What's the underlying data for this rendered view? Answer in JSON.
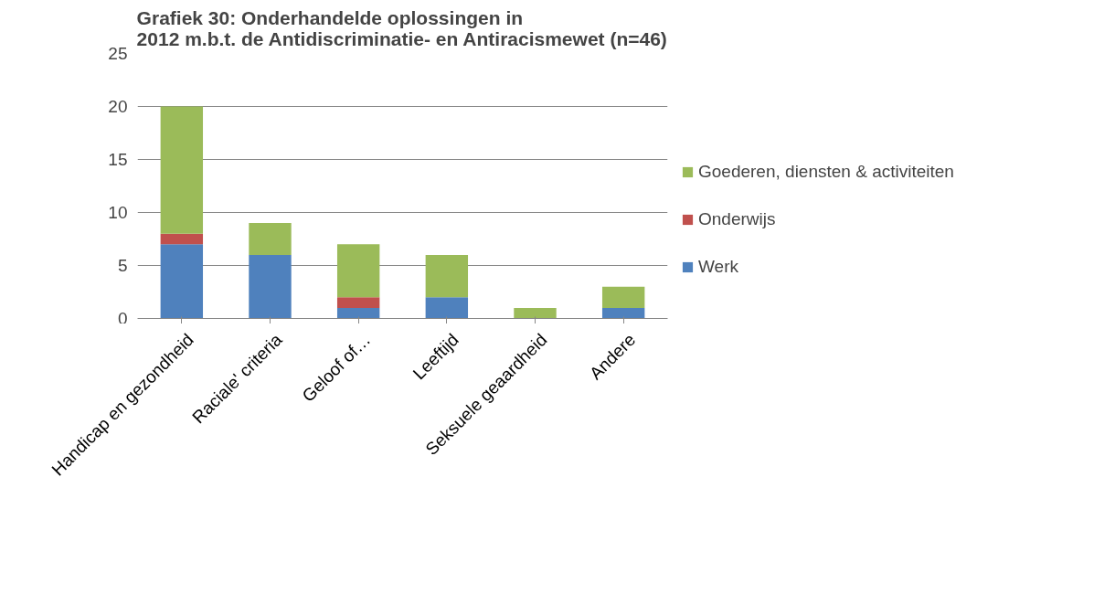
{
  "chart_data": {
    "type": "bar",
    "title": "Grafiek 30: Onderhandelde oplossingen in 2012 m.b.t. de Antidiscriminatie- en Antiracismewet (n=46)",
    "categories": [
      "Handicap en gezondheid",
      "Raciale' criteria",
      "Geloof of…",
      "Leeftijd",
      "Seksuele geaardheid",
      "Andere"
    ],
    "stacked": true,
    "series": [
      {
        "name": "Werk",
        "color": "#4f81bd",
        "values": [
          7,
          6,
          1,
          2,
          0,
          1
        ]
      },
      {
        "name": "Onderwijs",
        "color": "#c0504d",
        "values": [
          1,
          0,
          1,
          0,
          0,
          0
        ]
      },
      {
        "name": "Goederen, diensten & activiteiten",
        "color": "#9bbb59",
        "values": [
          12,
          3,
          5,
          4,
          1,
          2
        ]
      }
    ],
    "ylim": [
      0,
      25
    ],
    "yticks": [
      0,
      5,
      10,
      15,
      20,
      25
    ],
    "grid": "y",
    "legend": "right"
  }
}
